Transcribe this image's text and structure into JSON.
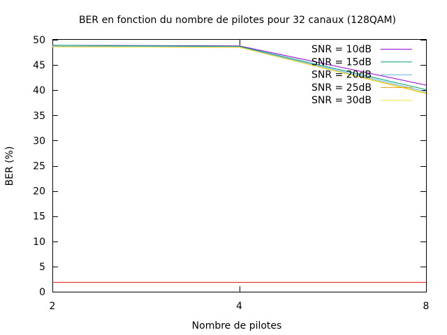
{
  "chart_data": {
    "type": "line",
    "title": "BER en fonction du nombre de pilotes pour 32 canaux (128QAM)",
    "xlabel": "Nombre de pilotes",
    "ylabel": "BER (%)",
    "x_ticks": [
      2,
      4,
      8
    ],
    "y_ticks": [
      0,
      5,
      10,
      15,
      20,
      25,
      30,
      35,
      40,
      45,
      50
    ],
    "xlim": [
      2,
      8
    ],
    "ylim": [
      0,
      50
    ],
    "legend_position": "top-right",
    "series": [
      {
        "name": "SNR = 10dB",
        "color": "#9400d3",
        "x": [
          2,
          4,
          8
        ],
        "y": [
          48.9,
          48.8,
          41.0
        ]
      },
      {
        "name": "SNR = 15dB",
        "color": "#009e73",
        "x": [
          2,
          4,
          8
        ],
        "y": [
          48.9,
          48.7,
          40.1
        ]
      },
      {
        "name": "SNR = 20dB",
        "color": "#56b4e9",
        "x": [
          2,
          4,
          8
        ],
        "y": [
          48.7,
          48.6,
          39.7
        ]
      },
      {
        "name": "SNR = 25dB",
        "color": "#e69f00",
        "x": [
          2,
          4,
          8
        ],
        "y": [
          48.6,
          48.5,
          39.4
        ]
      },
      {
        "name": "SNR = 30dB",
        "color": "#f0e442",
        "x": [
          2,
          4,
          8
        ],
        "y": [
          48.6,
          48.5,
          39.3
        ]
      }
    ],
    "reference_line": {
      "color": "#e51e10",
      "y": 2
    }
  }
}
